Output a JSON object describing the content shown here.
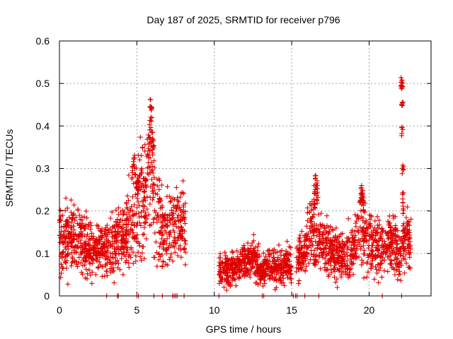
{
  "chart_data": {
    "type": "scatter",
    "title": "Day 187 of 2025, SRMTID for receiver p796",
    "xlabel": "GPS time / hours",
    "ylabel": "SRMTID / TECUs",
    "xlim": [
      0,
      24
    ],
    "ylim": [
      0,
      0.6
    ],
    "x_ticks": [
      "0",
      "5",
      "10",
      "15",
      "20"
    ],
    "y_ticks": [
      "0",
      "0.1",
      "0.2",
      "0.3",
      "0.4",
      "0.5",
      "0.6"
    ],
    "grid": true,
    "marker": "+",
    "series_color": "#e00000",
    "segments": [
      {
        "x": [
          0.0,
          1.0,
          2.0,
          3.0,
          4.0,
          4.8,
          5.2,
          5.5,
          5.9,
          6.2,
          6.6,
          7.0,
          7.5,
          8.0,
          8.15
        ],
        "y": [
          0.13,
          0.14,
          0.11,
          0.11,
          0.13,
          0.17,
          0.24,
          0.22,
          0.33,
          0.2,
          0.16,
          0.17,
          0.16,
          0.16,
          0.17
        ]
      },
      {
        "x": [
          10.3,
          11.0,
          11.5,
          12.0,
          12.5,
          13.0,
          13.5,
          14.0,
          14.5,
          15.0
        ],
        "y": [
          0.06,
          0.06,
          0.07,
          0.08,
          0.09,
          0.06,
          0.07,
          0.07,
          0.07,
          0.08
        ]
      },
      {
        "x": [
          15.3,
          15.8,
          16.2,
          16.6,
          17.0,
          17.5,
          18.0,
          18.5,
          19.0,
          19.5,
          20.0,
          20.5,
          21.0,
          21.5,
          22.0,
          22.3,
          22.7
        ],
        "y": [
          0.08,
          0.1,
          0.16,
          0.14,
          0.12,
          0.11,
          0.1,
          0.1,
          0.11,
          0.17,
          0.12,
          0.12,
          0.11,
          0.13,
          0.09,
          0.14,
          0.13
        ]
      }
    ],
    "highlights": [
      {
        "x": [
          5.8,
          5.85,
          5.9,
          5.95,
          6.0,
          6.05
        ],
        "y": [
          0.36,
          0.4,
          0.45,
          0.43,
          0.38,
          0.34
        ]
      },
      {
        "x": [
          4.7,
          4.8,
          4.9,
          5.0,
          5.05
        ],
        "y": [
          0.29,
          0.32,
          0.3,
          0.27,
          0.25
        ]
      },
      {
        "x": [
          16.45,
          16.5,
          16.55,
          16.6,
          16.65
        ],
        "y": [
          0.22,
          0.25,
          0.27,
          0.26,
          0.23
        ]
      },
      {
        "x": [
          19.45,
          19.5,
          19.55,
          19.6
        ],
        "y": [
          0.22,
          0.25,
          0.24,
          0.21
        ]
      },
      {
        "x": [
          22.1,
          22.12,
          22.14,
          22.16,
          22.18,
          22.2,
          22.22
        ],
        "y": [
          0.5,
          0.49,
          0.45,
          0.39,
          0.3,
          0.23,
          0.2
        ]
      }
    ],
    "zero_marks_x": [
      3.05,
      3.75,
      3.8,
      5.0,
      5.1,
      6.1,
      6.65,
      7.3,
      7.4,
      7.5,
      7.6,
      8.05,
      10.3,
      13.1,
      13.2,
      15.1,
      15.25,
      15.35,
      15.85,
      16.75,
      20.85,
      22.1
    ]
  }
}
